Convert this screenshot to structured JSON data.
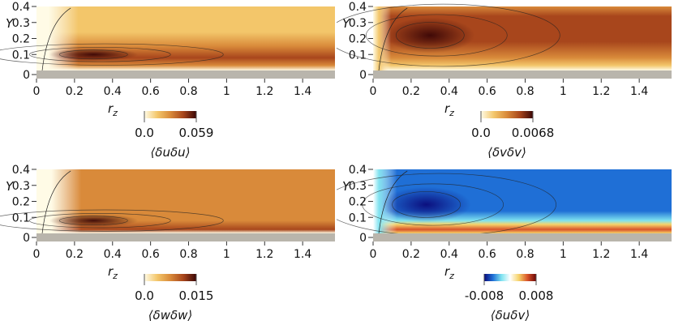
{
  "chart_data": [
    {
      "type": "heatmap",
      "xlabel": "r_z",
      "ylabel": "Y",
      "xlim": [
        0,
        1.57
      ],
      "ylim": [
        0,
        0.4
      ],
      "xticks": [
        "0",
        "0.2",
        "0.4",
        "0.6",
        "0.8",
        "1",
        "1.2",
        "1.4"
      ],
      "yticks": [
        "0",
        "0.1",
        "0.2",
        "0.3",
        "0.4"
      ],
      "colorbar": {
        "label": "⟨δuδu⟩",
        "min": "0.0",
        "max": "0.059",
        "colormap": "white-yellow-orange-brown-black"
      },
      "peak": {
        "x": 0.3,
        "y": 0.1
      },
      "colors": [
        "#fffbe6",
        "#f3c66a",
        "#d98a3a",
        "#a8461c",
        "#3a0606"
      ]
    },
    {
      "type": "heatmap",
      "xlabel": "r_z",
      "ylabel": "Y",
      "xlim": [
        0,
        1.57
      ],
      "ylim": [
        0,
        0.4
      ],
      "xticks": [
        "0",
        "0.2",
        "0.4",
        "0.6",
        "0.8",
        "1",
        "1.2",
        "1.4"
      ],
      "yticks": [
        "0",
        "0.1",
        "0.2",
        "0.3",
        "0.4"
      ],
      "colorbar": {
        "label": "⟨δvδv⟩",
        "min": "0.0",
        "max": "0.0068",
        "colormap": "white-yellow-orange-brown-black"
      },
      "peak": {
        "x": 0.3,
        "y": 0.22
      },
      "colors": [
        "#fffbe6",
        "#f3c66a",
        "#d98a3a",
        "#a8461c",
        "#3a0606"
      ]
    },
    {
      "type": "heatmap",
      "xlabel": "r_z",
      "ylabel": "Y",
      "xlim": [
        0,
        1.57
      ],
      "ylim": [
        0,
        0.4
      ],
      "xticks": [
        "0",
        "0.2",
        "0.4",
        "0.6",
        "0.8",
        "1",
        "1.2",
        "1.4"
      ],
      "yticks": [
        "0",
        "0.1",
        "0.2",
        "0.3",
        "0.4"
      ],
      "colorbar": {
        "label": "⟨δwδw⟩",
        "min": "0.0",
        "max": "0.015",
        "colormap": "white-yellow-orange-brown-black"
      },
      "peak": {
        "x": 0.3,
        "y": 0.08
      },
      "colors": [
        "#fffbe6",
        "#f3c66a",
        "#d98a3a",
        "#a8461c",
        "#3a0606"
      ]
    },
    {
      "type": "heatmap",
      "xlabel": "r_z",
      "ylabel": "Y",
      "xlim": [
        0,
        1.57
      ],
      "ylim": [
        0,
        0.4
      ],
      "xticks": [
        "0",
        "0.2",
        "0.4",
        "0.6",
        "0.8",
        "1",
        "1.2",
        "1.4"
      ],
      "yticks": [
        "0",
        "0.1",
        "0.2",
        "0.3",
        "0.4"
      ],
      "colorbar": {
        "label": "⟨δuδv⟩",
        "min": "-0.008",
        "max": "0.008",
        "colormap": "blue-cyan-white-yellow-red"
      },
      "peak": {
        "x": 0.28,
        "y": 0.18
      },
      "colors": [
        "#0a0a7a",
        "#1f6fd6",
        "#7fe3f0",
        "#ffffff",
        "#f6d36a",
        "#d9542a",
        "#6a0505"
      ]
    }
  ]
}
